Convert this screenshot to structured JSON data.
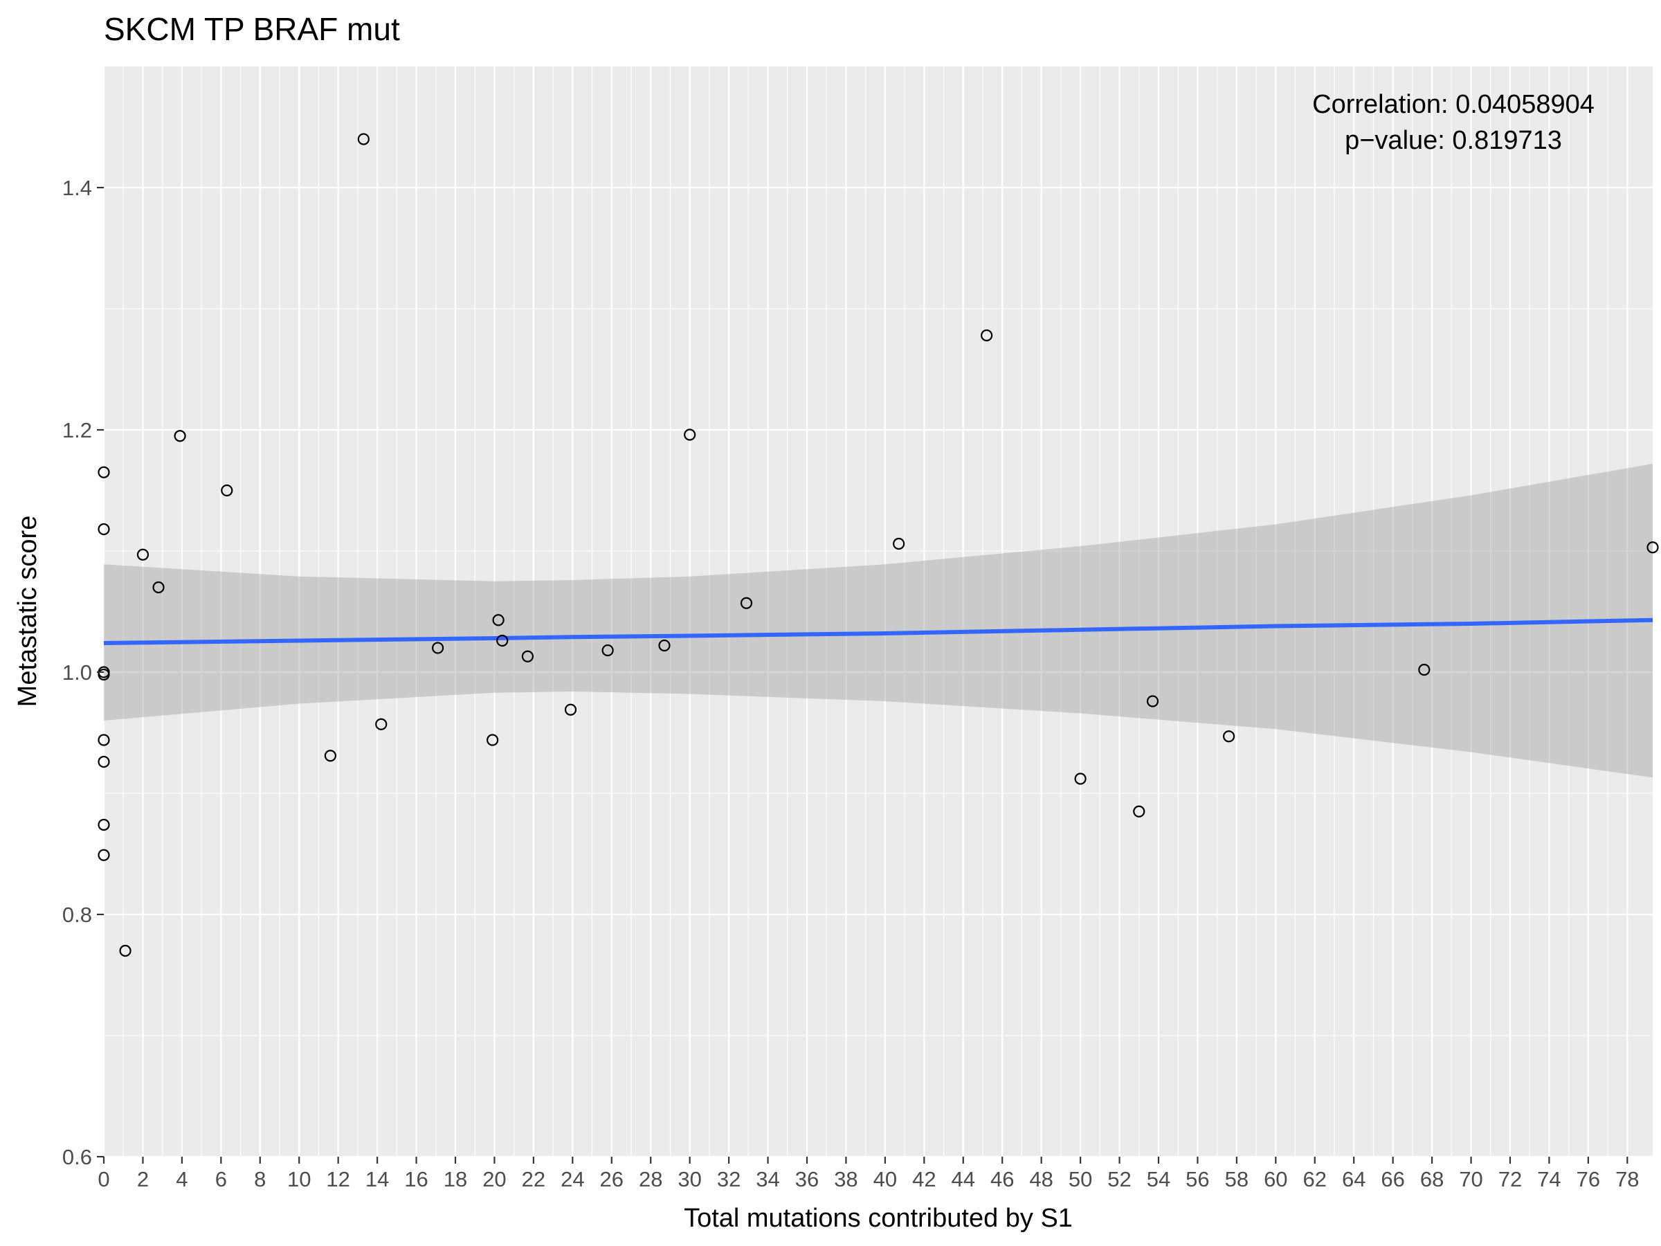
{
  "chart_data": {
    "type": "scatter",
    "title": "SKCM TP BRAF mut",
    "xlabel": "Total mutations contributed by S1",
    "ylabel": "Metastatic score",
    "xlim": [
      0,
      79.3
    ],
    "ylim": [
      0.6,
      1.5
    ],
    "x_ticks": [
      0,
      2,
      4,
      6,
      8,
      10,
      12,
      14,
      16,
      18,
      20,
      22,
      24,
      26,
      28,
      30,
      32,
      34,
      36,
      38,
      40,
      42,
      44,
      46,
      48,
      50,
      52,
      54,
      56,
      58,
      60,
      62,
      64,
      66,
      68,
      70,
      72,
      74,
      76,
      78
    ],
    "x_tick_labels": [
      "0",
      "2",
      "4",
      "6",
      "8",
      "10",
      "12",
      "14",
      "16",
      "18",
      "20",
      "22",
      "24",
      "26",
      "28",
      "30",
      "32",
      "34",
      "36",
      "38",
      "40",
      "42",
      "44",
      "46",
      "48",
      "50",
      "52",
      "54",
      "56",
      "58",
      "60",
      "62",
      "64",
      "66",
      "68",
      "70",
      "72",
      "74",
      "76",
      "78"
    ],
    "y_ticks": [
      0.6,
      0.8,
      1.0,
      1.2,
      1.4
    ],
    "y_tick_labels": [
      "0.6",
      "0.8",
      "1.0",
      "1.2",
      "1.4"
    ],
    "grid": true,
    "annotation": [
      "Correlation: 0.04058904",
      "p−value: 0.819713"
    ],
    "points": [
      {
        "x": 0,
        "y": 1.165
      },
      {
        "x": 0,
        "y": 1.118
      },
      {
        "x": 0,
        "y": 1.0
      },
      {
        "x": 0,
        "y": 0.998
      },
      {
        "x": 0,
        "y": 0.944
      },
      {
        "x": 0,
        "y": 0.926
      },
      {
        "x": 0,
        "y": 0.874
      },
      {
        "x": 0,
        "y": 0.849
      },
      {
        "x": 1.1,
        "y": 0.77
      },
      {
        "x": 2.0,
        "y": 1.097
      },
      {
        "x": 2.8,
        "y": 1.07
      },
      {
        "x": 3.9,
        "y": 1.195
      },
      {
        "x": 6.3,
        "y": 1.15
      },
      {
        "x": 11.6,
        "y": 0.931
      },
      {
        "x": 13.3,
        "y": 1.44
      },
      {
        "x": 14.2,
        "y": 0.957
      },
      {
        "x": 17.1,
        "y": 1.02
      },
      {
        "x": 19.9,
        "y": 0.944
      },
      {
        "x": 20.2,
        "y": 1.043
      },
      {
        "x": 20.4,
        "y": 1.026
      },
      {
        "x": 21.7,
        "y": 1.013
      },
      {
        "x": 23.9,
        "y": 0.969
      },
      {
        "x": 25.8,
        "y": 1.018
      },
      {
        "x": 28.7,
        "y": 1.022
      },
      {
        "x": 30.0,
        "y": 1.196
      },
      {
        "x": 32.9,
        "y": 1.057
      },
      {
        "x": 40.7,
        "y": 1.106
      },
      {
        "x": 45.2,
        "y": 1.278
      },
      {
        "x": 50.0,
        "y": 0.912
      },
      {
        "x": 53.0,
        "y": 0.885
      },
      {
        "x": 53.7,
        "y": 0.976
      },
      {
        "x": 57.6,
        "y": 0.947
      },
      {
        "x": 67.6,
        "y": 1.002
      },
      {
        "x": 79.3,
        "y": 1.103
      }
    ],
    "fit": {
      "method": "lm",
      "color": "#3366ff",
      "band_color": "#999999",
      "x": [
        0,
        10,
        20,
        24,
        30,
        40,
        50,
        60,
        70,
        79.3
      ],
      "y": [
        1.024,
        1.026,
        1.028,
        1.029,
        1.03,
        1.032,
        1.035,
        1.038,
        1.04,
        1.043
      ],
      "lower": [
        0.96,
        0.974,
        0.983,
        0.984,
        0.982,
        0.976,
        0.966,
        0.953,
        0.934,
        0.913
      ],
      "upper": [
        1.089,
        1.079,
        1.075,
        1.076,
        1.079,
        1.089,
        1.104,
        1.122,
        1.146,
        1.172
      ]
    },
    "colors": {
      "panel": "#ebebeb",
      "grid_major": "#ffffff",
      "point_stroke": "#000000",
      "axis_text": "#4d4d4d"
    }
  }
}
